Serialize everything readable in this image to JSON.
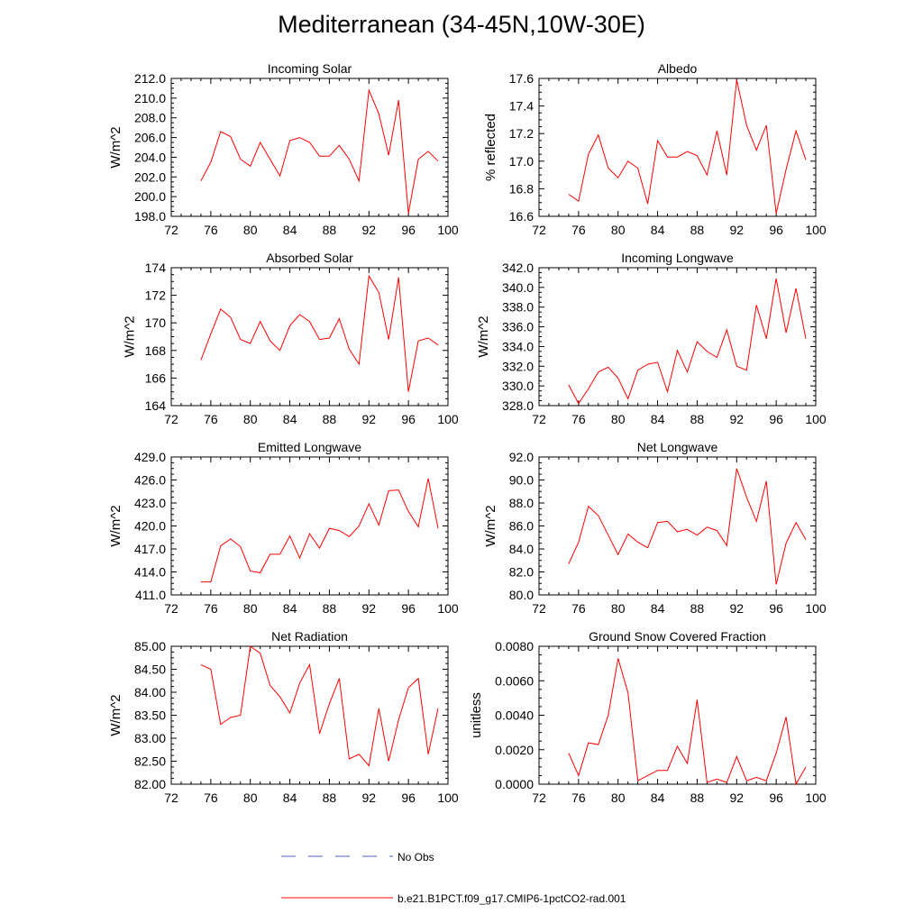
{
  "title": "Mediterranean (34-45N,10W-30E)",
  "legend": {
    "entries": [
      {
        "label": "No Obs",
        "color": "#4a5fc1",
        "dash": true
      },
      {
        "label": "b.e21.B1PCT.f09_g17.CMIP6-1pctCO2-rad.001",
        "color": "#ff0000",
        "dash": false
      }
    ]
  },
  "chart_data": [
    {
      "type": "line",
      "title": "Incoming Solar",
      "ylabel": "W/m^2",
      "xlim": [
        72,
        100
      ],
      "ylim": [
        198.0,
        212.0
      ],
      "xticks": [
        "72",
        "76",
        "80",
        "84",
        "88",
        "92",
        "96",
        "100"
      ],
      "yticks": [
        "198.0",
        "200.0",
        "202.0",
        "204.0",
        "206.0",
        "208.0",
        "210.0",
        "212.0"
      ],
      "x": [
        75,
        76,
        77,
        78,
        79,
        80,
        81,
        82,
        83,
        84,
        85,
        86,
        87,
        88,
        89,
        90,
        91,
        92,
        93,
        94,
        95,
        96,
        97,
        98,
        99
      ],
      "series": [
        {
          "color": "#ff0000",
          "values": [
            201.6,
            203.5,
            206.6,
            206.1,
            203.8,
            203.1,
            205.5,
            203.8,
            202.1,
            205.7,
            206.0,
            205.5,
            204.1,
            204.1,
            205.2,
            203.8,
            201.6,
            210.8,
            208.4,
            204.2,
            209.8,
            198.3,
            203.8,
            204.6,
            203.6
          ]
        }
      ]
    },
    {
      "type": "line",
      "title": "Albedo",
      "ylabel": "% reflected",
      "xlim": [
        72,
        100
      ],
      "ylim": [
        16.6,
        17.6
      ],
      "xticks": [
        "72",
        "76",
        "80",
        "84",
        "88",
        "92",
        "96",
        "100"
      ],
      "yticks": [
        "16.6",
        "16.8",
        "17.0",
        "17.2",
        "17.4",
        "17.6"
      ],
      "x": [
        75,
        76,
        77,
        78,
        79,
        80,
        81,
        82,
        83,
        84,
        85,
        86,
        87,
        88,
        89,
        90,
        91,
        92,
        93,
        94,
        95,
        96,
        97,
        98,
        99
      ],
      "series": [
        {
          "color": "#ff0000",
          "values": [
            16.76,
            16.71,
            17.05,
            17.19,
            16.95,
            16.88,
            17.0,
            16.95,
            16.69,
            17.15,
            17.03,
            17.03,
            17.07,
            17.04,
            16.9,
            17.22,
            16.9,
            17.59,
            17.26,
            17.08,
            17.26,
            16.62,
            16.94,
            17.22,
            17.01
          ]
        }
      ]
    },
    {
      "type": "line",
      "title": "Absorbed Solar",
      "ylabel": "W/m^2",
      "xlim": [
        72,
        100
      ],
      "ylim": [
        164,
        174
      ],
      "xticks": [
        "72",
        "76",
        "80",
        "84",
        "88",
        "92",
        "96",
        "100"
      ],
      "yticks": [
        "164",
        "166",
        "168",
        "170",
        "172",
        "174"
      ],
      "x": [
        75,
        76,
        77,
        78,
        79,
        80,
        81,
        82,
        83,
        84,
        85,
        86,
        87,
        88,
        89,
        90,
        91,
        92,
        93,
        94,
        95,
        96,
        97,
        98,
        99
      ],
      "series": [
        {
          "color": "#ff0000",
          "values": [
            167.3,
            169.2,
            171.0,
            170.4,
            168.8,
            168.5,
            170.1,
            168.7,
            168.0,
            169.8,
            170.6,
            170.1,
            168.8,
            168.9,
            170.3,
            168.1,
            167.0,
            173.4,
            172.2,
            168.8,
            173.3,
            165.0,
            168.7,
            168.9,
            168.4
          ]
        }
      ]
    },
    {
      "type": "line",
      "title": "Incoming Longwave",
      "ylabel": "W/m^2",
      "xlim": [
        72,
        100
      ],
      "ylim": [
        328.0,
        342.0
      ],
      "xticks": [
        "72",
        "76",
        "80",
        "84",
        "88",
        "92",
        "96",
        "100"
      ],
      "yticks": [
        "328.0",
        "330.0",
        "332.0",
        "334.0",
        "336.0",
        "338.0",
        "340.0",
        "342.0"
      ],
      "x": [
        75,
        76,
        77,
        78,
        79,
        80,
        81,
        82,
        83,
        84,
        85,
        86,
        87,
        88,
        89,
        90,
        91,
        92,
        93,
        94,
        95,
        96,
        97,
        98,
        99
      ],
      "series": [
        {
          "color": "#ff0000",
          "values": [
            330.1,
            328.2,
            329.7,
            331.4,
            331.9,
            330.8,
            328.7,
            331.6,
            332.2,
            332.4,
            329.4,
            333.6,
            331.4,
            334.5,
            333.5,
            332.9,
            335.7,
            332.0,
            331.6,
            338.2,
            334.8,
            340.9,
            335.4,
            339.9,
            334.8
          ]
        }
      ]
    },
    {
      "type": "line",
      "title": "Emitted Longwave",
      "ylabel": "W/m^2",
      "xlim": [
        72,
        100
      ],
      "ylim": [
        411.0,
        429.0
      ],
      "xticks": [
        "72",
        "76",
        "80",
        "84",
        "88",
        "92",
        "96",
        "100"
      ],
      "yticks": [
        "411.0",
        "414.0",
        "417.0",
        "420.0",
        "423.0",
        "426.0",
        "429.0"
      ],
      "x": [
        75,
        76,
        77,
        78,
        79,
        80,
        81,
        82,
        83,
        84,
        85,
        86,
        87,
        88,
        89,
        90,
        91,
        92,
        93,
        94,
        95,
        96,
        97,
        98,
        99
      ],
      "series": [
        {
          "color": "#ff0000",
          "values": [
            412.7,
            412.7,
            417.4,
            418.3,
            417.3,
            414.1,
            413.9,
            416.3,
            416.3,
            418.7,
            415.8,
            419.0,
            417.1,
            419.7,
            419.4,
            418.6,
            420.0,
            422.9,
            420.1,
            424.6,
            424.7,
            421.9,
            419.9,
            426.2,
            419.7
          ]
        }
      ]
    },
    {
      "type": "line",
      "title": "Net Longwave",
      "ylabel": "W/m^2",
      "xlim": [
        72,
        100
      ],
      "ylim": [
        80.0,
        92.0
      ],
      "xticks": [
        "72",
        "76",
        "80",
        "84",
        "88",
        "92",
        "96",
        "100"
      ],
      "yticks": [
        "80.0",
        "82.0",
        "84.0",
        "86.0",
        "88.0",
        "90.0",
        "92.0"
      ],
      "x": [
        75,
        76,
        77,
        78,
        79,
        80,
        81,
        82,
        83,
        84,
        85,
        86,
        87,
        88,
        89,
        90,
        91,
        92,
        93,
        94,
        95,
        96,
        97,
        98,
        99
      ],
      "series": [
        {
          "color": "#ff0000",
          "values": [
            82.7,
            84.6,
            87.7,
            86.9,
            85.2,
            83.5,
            85.3,
            84.6,
            84.1,
            86.3,
            86.4,
            85.5,
            85.7,
            85.2,
            85.9,
            85.6,
            84.3,
            91.0,
            88.5,
            86.4,
            89.9,
            80.9,
            84.5,
            86.3,
            84.8
          ]
        }
      ]
    },
    {
      "type": "line",
      "title": "Net Radiation",
      "ylabel": "W/m^2",
      "xlim": [
        72,
        100
      ],
      "ylim": [
        82.0,
        85.0
      ],
      "xticks": [
        "72",
        "76",
        "80",
        "84",
        "88",
        "92",
        "96",
        "100"
      ],
      "yticks": [
        "82.00",
        "82.50",
        "83.00",
        "83.50",
        "84.00",
        "84.50",
        "85.00"
      ],
      "x": [
        75,
        76,
        77,
        78,
        79,
        80,
        81,
        82,
        83,
        84,
        85,
        86,
        87,
        88,
        89,
        90,
        91,
        92,
        93,
        94,
        95,
        96,
        97,
        98,
        99
      ],
      "series": [
        {
          "color": "#ff0000",
          "values": [
            84.6,
            84.5,
            83.3,
            83.45,
            83.5,
            85.0,
            84.85,
            84.15,
            83.9,
            83.55,
            84.2,
            84.6,
            83.1,
            83.75,
            84.3,
            82.55,
            82.65,
            82.4,
            83.65,
            82.5,
            83.4,
            84.1,
            84.3,
            82.65,
            83.65
          ]
        }
      ]
    },
    {
      "type": "line",
      "title": "Ground Snow Covered Fraction",
      "ylabel": "unitless",
      "xlim": [
        72,
        100
      ],
      "ylim": [
        0.0,
        0.008
      ],
      "xticks": [
        "72",
        "76",
        "80",
        "84",
        "88",
        "92",
        "96",
        "100"
      ],
      "yticks": [
        "0.0000",
        "0.0020",
        "0.0040",
        "0.0060",
        "0.0080"
      ],
      "x": [
        75,
        76,
        77,
        78,
        79,
        80,
        81,
        82,
        83,
        84,
        85,
        86,
        87,
        88,
        89,
        90,
        91,
        92,
        93,
        94,
        95,
        96,
        97,
        98,
        99
      ],
      "series": [
        {
          "color": "#ff0000",
          "values": [
            0.0018,
            0.0005,
            0.0024,
            0.0023,
            0.004,
            0.0073,
            0.0053,
            0.0002,
            0.0005,
            0.0008,
            0.0008,
            0.0022,
            0.0012,
            0.0049,
            0.0001,
            0.0003,
            0.0001,
            0.0016,
            0.0002,
            0.0004,
            0.0002,
            0.0018,
            0.0039,
            0.0,
            0.001
          ]
        }
      ]
    }
  ]
}
